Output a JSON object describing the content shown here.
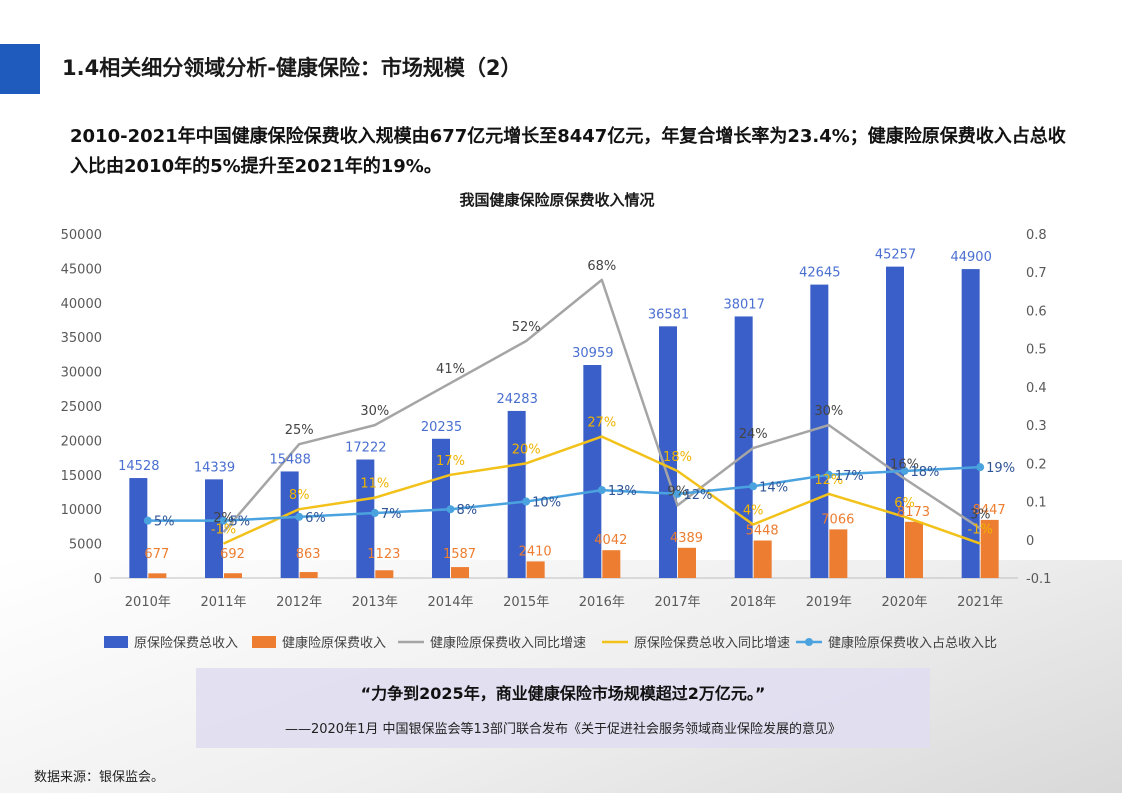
{
  "page": {
    "title": "1.4相关细分领域分析-健康保险：市场规模（2）",
    "headline": "2010-2021年中国健康保险保费收入规模由677亿元增长至8447亿元，年复合增长率为23.4%；健康险原保费收入占总收入比由2010年的5%提升至2021年的19%。",
    "quote": "“力争到2025年，商业健康保险市场规模超过2万亿元。”",
    "quote_source": "——2020年1月 中国银保监会等13部门联合发布《关于促进社会服务领域商业保险发展的意见》",
    "source_note": "数据来源：银保监会。",
    "colors": {
      "accent": "#1f5bbd",
      "quote_bg": "#dfddf0"
    }
  },
  "chart_data": {
    "type": "bar",
    "title": "我国健康保险原保费收入情况",
    "categories": [
      "2010年",
      "2011年",
      "2012年",
      "2013年",
      "2014年",
      "2015年",
      "2016年",
      "2017年",
      "2018年",
      "2019年",
      "2020年",
      "2021年"
    ],
    "y_left": {
      "range": [
        0,
        50000
      ],
      "ticks": [
        "0",
        "5000",
        "10000",
        "15000",
        "20000",
        "25000",
        "30000",
        "35000",
        "40000",
        "45000",
        "50000"
      ]
    },
    "y_right": {
      "range": [
        -0.1,
        0.8
      ],
      "ticks": [
        "-0.1",
        "0",
        "0.1",
        "0.2",
        "0.3",
        "0.4",
        "0.5",
        "0.6",
        "0.7",
        "0.8"
      ]
    },
    "grid": false,
    "legend_position": "bottom",
    "series": [
      {
        "name": "原保险保费总收入",
        "type": "bar",
        "axis": "left",
        "color": "#3b5fc8",
        "label_color": "#4a6fd0",
        "values": [
          14528,
          14339,
          15488,
          17222,
          20235,
          24283,
          30959,
          36581,
          38017,
          42645,
          45257,
          44900
        ],
        "labels": [
          "14528",
          "14339",
          "15488",
          "17222",
          "20235",
          "24283",
          "30959",
          "36581",
          "38017",
          "42645",
          "45257",
          "44900"
        ]
      },
      {
        "name": "健康险原保费收入",
        "type": "bar",
        "axis": "left",
        "color": "#ed7d31",
        "label_color": "#ed7d31",
        "values": [
          677,
          692,
          863,
          1123,
          1587,
          2410,
          4042,
          4389,
          5448,
          7066,
          8173,
          8447
        ],
        "labels": [
          "677",
          "692",
          "863",
          "1123",
          "1587",
          "2410",
          "4042",
          "4389",
          "5448",
          "7066",
          "8173",
          "8447"
        ]
      },
      {
        "name": "健康险原保费收入同比增速",
        "type": "line",
        "axis": "right",
        "color": "#a5a5a5",
        "label_color": "#444444",
        "values": [
          null,
          0.02,
          0.25,
          0.3,
          0.41,
          0.52,
          0.68,
          0.09,
          0.24,
          0.3,
          0.16,
          0.03
        ],
        "labels": [
          "",
          "2%",
          "25%",
          "30%",
          "41%",
          "52%",
          "68%",
          "9%",
          "24%",
          "30%",
          "16%",
          "3%"
        ]
      },
      {
        "name": "原保险保费总收入同比增速",
        "type": "line",
        "axis": "right",
        "color": "#f2c21b",
        "label_color": "#f0b400",
        "values": [
          null,
          -0.01,
          0.08,
          0.11,
          0.17,
          0.2,
          0.27,
          0.18,
          0.04,
          0.12,
          0.06,
          -0.01
        ],
        "labels": [
          "",
          "-1%",
          "8%",
          "11%",
          "17%",
          "20%",
          "27%",
          "18%",
          "4%",
          "12%",
          "6%",
          "-1%"
        ]
      },
      {
        "name": "健康险原保费收入占总收入比",
        "type": "line",
        "axis": "right",
        "color": "#4aa3df",
        "label_color": "#2f5597",
        "marker": "circle",
        "values": [
          0.05,
          0.05,
          0.06,
          0.07,
          0.08,
          0.1,
          0.13,
          0.12,
          0.14,
          0.17,
          0.18,
          0.19
        ],
        "labels": [
          "5%",
          "5%",
          "6%",
          "7%",
          "8%",
          "10%",
          "13%",
          "12%",
          "14%",
          "17%",
          "18%",
          "19%"
        ]
      }
    ]
  }
}
